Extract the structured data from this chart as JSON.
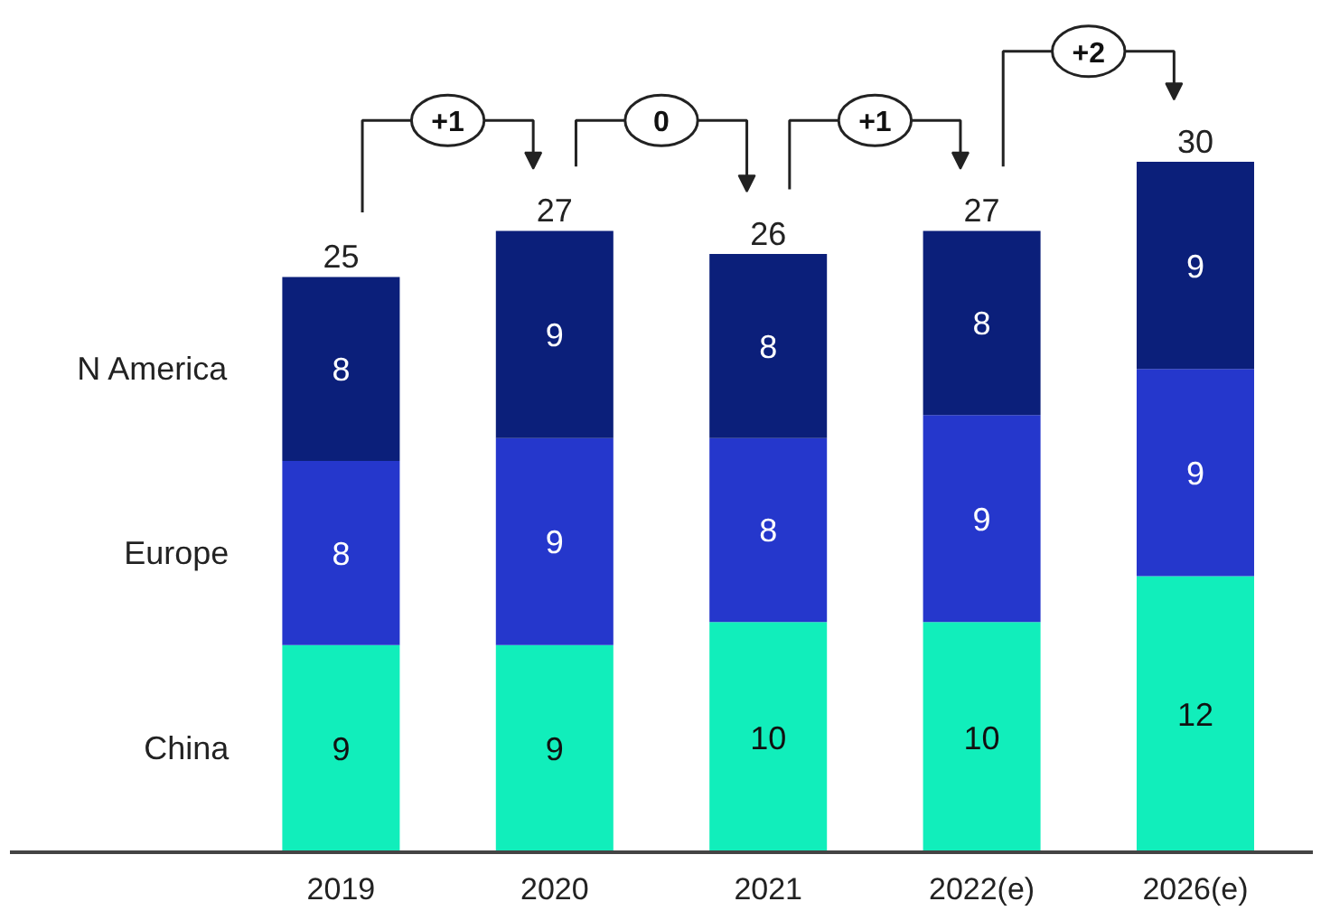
{
  "chart_data": {
    "type": "bar",
    "stacked": true,
    "data_labels": true,
    "grid": false,
    "categories": [
      "2019",
      "2020",
      "2021",
      "2022(e)",
      "2026(e)"
    ],
    "series": [
      {
        "name": "China",
        "color": "#11eebb",
        "values": [
          9,
          9,
          10,
          10,
          12
        ]
      },
      {
        "name": "Europe",
        "color": "#2537cc",
        "values": [
          8,
          9,
          8,
          9,
          9
        ]
      },
      {
        "name": "N America",
        "color": "#0b1f7a",
        "values": [
          8,
          9,
          8,
          8,
          9
        ]
      }
    ],
    "totals": [
      "25",
      "27",
      "26",
      "27",
      "30"
    ],
    "annotations": [
      "+1",
      "0",
      "+1",
      "+2"
    ]
  }
}
